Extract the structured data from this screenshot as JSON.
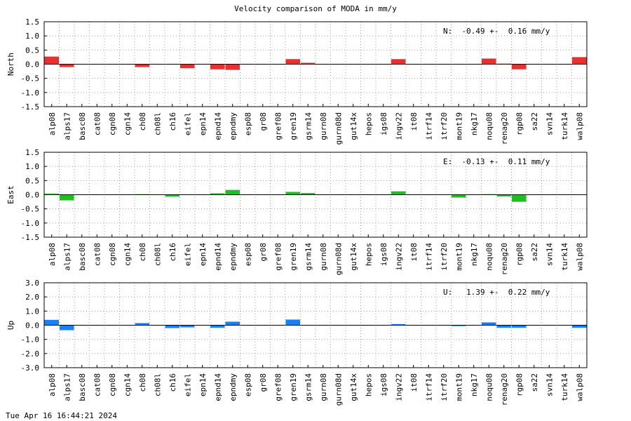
{
  "page": {
    "title": "Velocity comparison of MODA in mm/y",
    "timestamp": "Tue Apr 16 16:44:21 2024"
  },
  "chart_data": [
    {
      "type": "bar",
      "ylabel": "North",
      "ylim": [
        -1.5,
        1.5
      ],
      "yticks": [
        -1.5,
        -1.0,
        -0.5,
        0.0,
        0.5,
        1.0,
        1.5
      ],
      "grid": true,
      "color": "#e83030",
      "annotation": "N:  -0.49 +-  0.16 mm/y",
      "categories": [
        "alp08",
        "alps17",
        "basc08",
        "cat08",
        "cgn08",
        "cgn14",
        "ch08",
        "ch08l",
        "ch16",
        "eifel",
        "epn14",
        "epnd14",
        "epndmy",
        "esp08",
        "gr08",
        "gref08",
        "gren19",
        "gsrm14",
        "gurn08",
        "gurn08d",
        "gut14x",
        "hepos",
        "igs08",
        "ingv22",
        "it08",
        "itrf14",
        "itrf20",
        "mont19",
        "nkg17",
        "noqu08",
        "renag20",
        "rgp08",
        "sa22",
        "svn14",
        "turk14",
        "walp08"
      ],
      "values": [
        0.27,
        -0.1,
        0,
        0,
        0,
        0,
        -0.1,
        0,
        0,
        -0.14,
        0,
        -0.18,
        -0.2,
        0,
        0,
        0,
        0.18,
        0.05,
        0,
        0,
        0,
        0,
        0,
        0.18,
        0,
        0,
        0,
        0,
        0,
        0.2,
        0.02,
        -0.18,
        0,
        0,
        0,
        0.25
      ]
    },
    {
      "type": "bar",
      "ylabel": "East",
      "ylim": [
        -1.5,
        1.5
      ],
      "yticks": [
        -1.5,
        -1.0,
        -0.5,
        0.0,
        0.5,
        1.0,
        1.5
      ],
      "grid": true,
      "color": "#1fbf1f",
      "annotation": "E:  -0.13 +-  0.11 mm/y",
      "categories": [
        "alp08",
        "alps17",
        "basc08",
        "cat08",
        "cgn08",
        "cgn14",
        "ch08",
        "ch08l",
        "ch16",
        "eifel",
        "epn14",
        "epnd14",
        "epndmy",
        "esp08",
        "gr08",
        "gref08",
        "gren19",
        "gsrm14",
        "gurn08",
        "gurn08d",
        "gut14x",
        "hepos",
        "igs08",
        "ingv22",
        "it08",
        "itrf14",
        "itrf20",
        "mont19",
        "nkg17",
        "noqu08",
        "renag20",
        "rgp08",
        "sa22",
        "svn14",
        "turk14",
        "walp08"
      ],
      "values": [
        0.04,
        -0.2,
        0,
        0,
        0,
        0,
        0.02,
        0,
        -0.07,
        0,
        0,
        0.05,
        0.17,
        0,
        0,
        0,
        0.1,
        0.06,
        0,
        0,
        0,
        0,
        0,
        0.12,
        0,
        0,
        0,
        -0.1,
        0,
        0.02,
        -0.06,
        -0.25,
        0,
        0,
        0,
        0
      ]
    },
    {
      "type": "bar",
      "ylabel": "Up",
      "ylim": [
        -3.0,
        3.0
      ],
      "yticks": [
        -3.0,
        -2.0,
        -1.0,
        0.0,
        1.0,
        2.0,
        3.0
      ],
      "grid": true,
      "color": "#1a7ff0",
      "annotation": "U:   1.39 +-  0.22 mm/y",
      "categories": [
        "alp08",
        "alps17",
        "basc08",
        "cat08",
        "cgn08",
        "cgn14",
        "ch08",
        "ch08l",
        "ch16",
        "eifel",
        "epn14",
        "epnd14",
        "epndmy",
        "esp08",
        "gr08",
        "gref08",
        "gren19",
        "gsrm14",
        "gurn08",
        "gurn08d",
        "gut14x",
        "hepos",
        "igs08",
        "ingv22",
        "it08",
        "itrf14",
        "itrf20",
        "mont19",
        "nkg17",
        "noqu08",
        "renag20",
        "rgp08",
        "sa22",
        "svn14",
        "turk14",
        "walp08"
      ],
      "values": [
        0.38,
        -0.35,
        0,
        0,
        0,
        0,
        0.15,
        0,
        -0.2,
        -0.15,
        0,
        -0.18,
        0.25,
        0,
        0,
        0,
        0.4,
        0,
        0,
        0,
        0,
        0,
        0,
        0.08,
        0,
        0,
        0,
        -0.06,
        0,
        0.2,
        -0.18,
        -0.18,
        0,
        0,
        0,
        -0.18
      ]
    }
  ]
}
